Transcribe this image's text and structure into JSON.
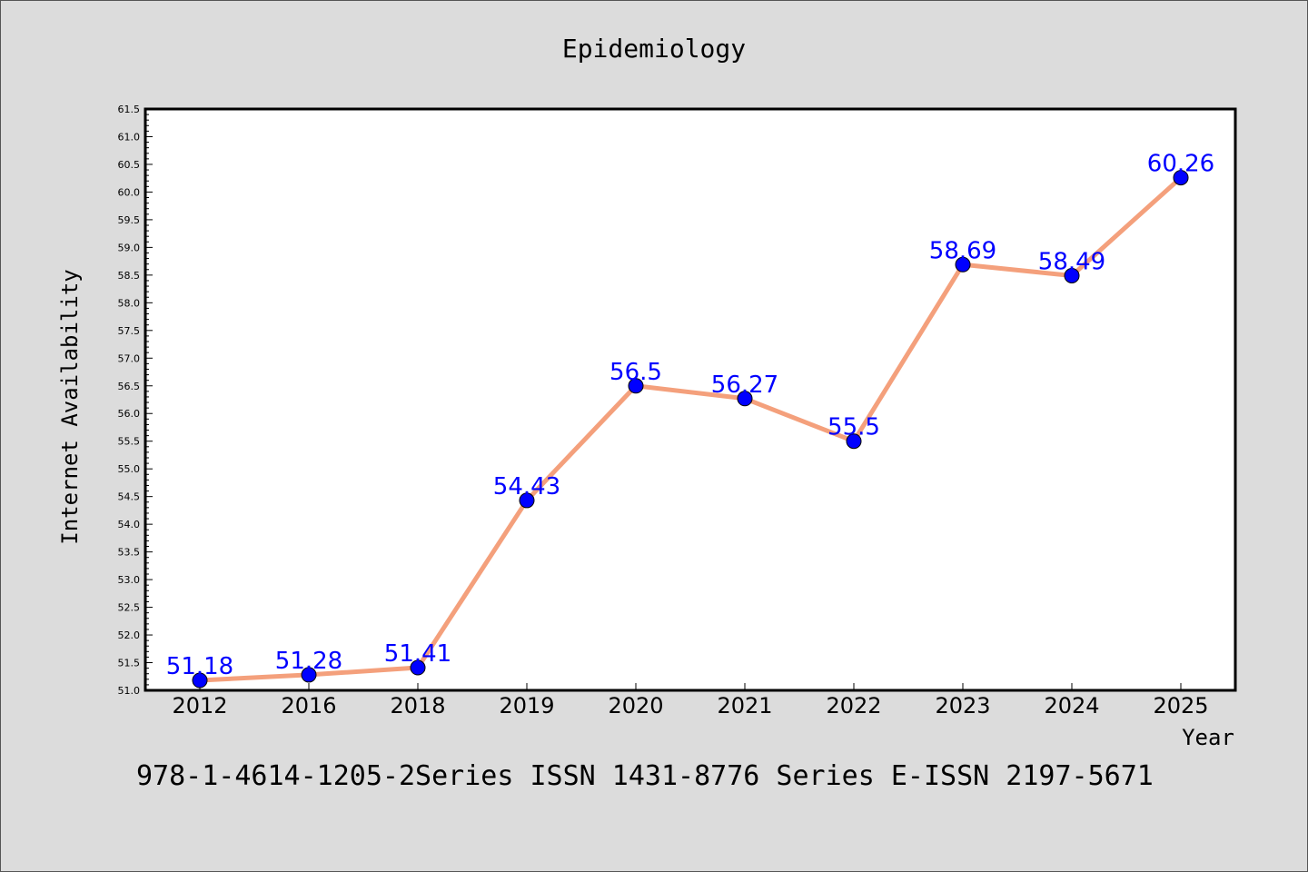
{
  "chart_data": {
    "type": "line",
    "title": "Epidemiology",
    "xlabel": "Year",
    "ylabel": "Internet Availability",
    "categories": [
      "2012",
      "2016",
      "2018",
      "2019",
      "2020",
      "2021",
      "2022",
      "2023",
      "2024",
      "2025"
    ],
    "series": [
      {
        "values": [
          51.18,
          51.28,
          51.41,
          54.43,
          56.5,
          56.27,
          55.5,
          58.69,
          58.49,
          60.26
        ],
        "labels": [
          "51.18",
          "51.28",
          "51.41",
          "54.43",
          "56.5",
          "56.27",
          "55.5",
          "58.69",
          "58.49",
          "60.26"
        ],
        "line_color": "#f4a07c",
        "marker_color": "#0000ff"
      }
    ],
    "ylim": [
      51.0,
      61.5
    ],
    "yticks": [
      "51.0",
      "51.5",
      "52.0",
      "52.5",
      "53.0",
      "53.5",
      "54.0",
      "54.5",
      "55.0",
      "55.5",
      "56.0",
      "56.5",
      "57.0",
      "57.5",
      "58.0",
      "58.5",
      "59.0",
      "59.5",
      "60.0",
      "60.5",
      "61.0",
      "61.5"
    ],
    "grid": false,
    "label_color": "#0000ff"
  },
  "footer_text": "978-1-4614-1205-2Series ISSN 1431-8776 Series E-ISSN 2197-5671",
  "colors": {
    "background": "#dcdcdc",
    "plot_background": "#ffffff",
    "axis": "#000000"
  }
}
